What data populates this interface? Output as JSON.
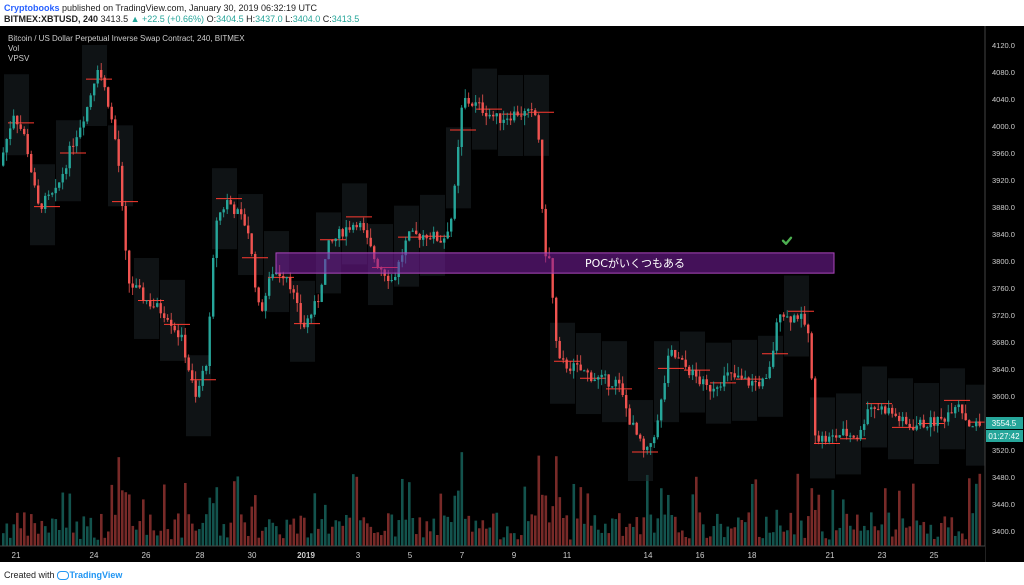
{
  "header": {
    "author": "Cryptobooks",
    "published_text": "published on TradingView.com, January 30, 2019 06:32:19 UTC",
    "symbol": "BITMEX:XBTUSD, 240",
    "last": "3413.5",
    "change": "▲ +22.5 (+0.66%)",
    "open_label": "O:",
    "open": "3404.5",
    "high_label": "H:",
    "high": "3437.0",
    "low_label": "L:",
    "low": "3404.0",
    "close_label": "C:",
    "close": "3413.5"
  },
  "chart": {
    "legend_title": "Bitcoin / US Dollar Perpetual Inverse Swap Contract, 240, BITMEX",
    "indicators": [
      "Vol",
      "VPSV"
    ],
    "annotation": "POCがいくつもある",
    "price_tag": "3554.5",
    "countdown": "01:27:42"
  },
  "footer": {
    "created_with": "Created with",
    "brand": "TradingView"
  },
  "colors": {
    "up": "#26a69a",
    "down": "#ef5350",
    "background": "#000000",
    "zone_fill": "#7b1fa2",
    "zone_border": "#ab47bc",
    "checkmark": "#4caf50"
  },
  "chart_data": {
    "type": "candlestick",
    "y_axis_ticks": [
      3400,
      3440,
      3480,
      3520,
      3560,
      3600,
      3640,
      3680,
      3720,
      3760,
      3800,
      3840,
      3880,
      3920,
      3960,
      4000,
      4040,
      4080,
      4120
    ],
    "x_axis_ticks": [
      "21",
      "24",
      "26",
      "28",
      "30",
      "2019",
      "3",
      "5",
      "7",
      "9",
      "11",
      "14",
      "16",
      "18",
      "21",
      "23",
      "25"
    ],
    "highlight_zone": {
      "low": 3782,
      "high": 3812,
      "label": "POCがいくつもある"
    },
    "markers": [
      {
        "type": "checkmark",
        "price": 3830
      }
    ]
  }
}
